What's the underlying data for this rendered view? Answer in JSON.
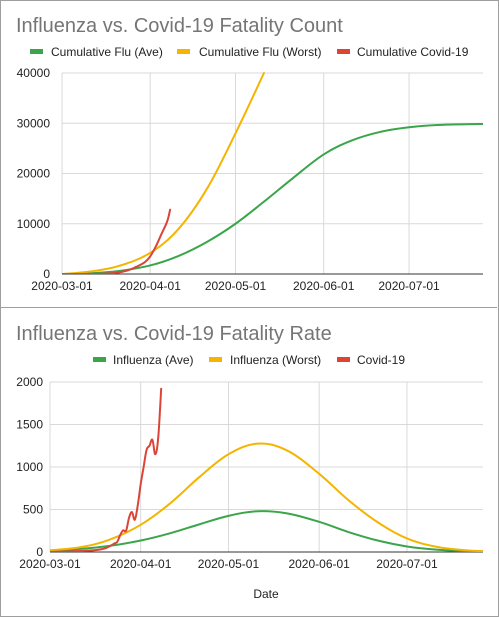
{
  "chart_data": [
    {
      "type": "line",
      "title": "Influenza vs. Covid-19 Fatality Count",
      "xlabel": "",
      "ylabel": "",
      "x_start": "2020-03-01",
      "x_end": "2020-07-27",
      "x_ticks": [
        "2020-03-01",
        "2020-04-01",
        "2020-05-01",
        "2020-06-01",
        "2020-07-01"
      ],
      "ylim": [
        0,
        40000
      ],
      "y_ticks": [
        0,
        10000,
        20000,
        30000,
        40000
      ],
      "grid": true,
      "legend_position": "top",
      "series": [
        {
          "name": "Cumulative Flu (Ave)",
          "color": "#3aa54a",
          "points": [
            [
              "2020-03-01",
              0
            ],
            [
              "2020-03-11",
              150
            ],
            [
              "2020-03-21",
              600
            ],
            [
              "2020-04-01",
              1700
            ],
            [
              "2020-04-11",
              3600
            ],
            [
              "2020-04-21",
              6400
            ],
            [
              "2020-05-01",
              10000
            ],
            [
              "2020-05-11",
              14400
            ],
            [
              "2020-05-21",
              19000
            ],
            [
              "2020-06-01",
              23800
            ],
            [
              "2020-06-11",
              26600
            ],
            [
              "2020-06-21",
              28300
            ],
            [
              "2020-07-01",
              29200
            ],
            [
              "2020-07-11",
              29650
            ],
            [
              "2020-07-21",
              29800
            ],
            [
              "2020-07-27",
              29850
            ]
          ]
        },
        {
          "name": "Cumulative Flu (Worst)",
          "color": "#f4b400",
          "points": [
            [
              "2020-03-01",
              0
            ],
            [
              "2020-03-11",
              500
            ],
            [
              "2020-03-21",
              1600
            ],
            [
              "2020-04-01",
              4200
            ],
            [
              "2020-04-11",
              9000
            ],
            [
              "2020-04-21",
              17000
            ],
            [
              "2020-05-01",
              28000
            ],
            [
              "2020-05-11",
              40000
            ]
          ]
        },
        {
          "name": "Cumulative Covid-19",
          "color": "#db4437",
          "points": [
            [
              "2020-03-01",
              0
            ],
            [
              "2020-03-10",
              20
            ],
            [
              "2020-03-15",
              60
            ],
            [
              "2020-03-20",
              250
            ],
            [
              "2020-03-24",
              700
            ],
            [
              "2020-03-27",
              1400
            ],
            [
              "2020-03-30",
              2300
            ],
            [
              "2020-04-01",
              3500
            ],
            [
              "2020-04-03",
              5500
            ],
            [
              "2020-04-05",
              8000
            ],
            [
              "2020-04-07",
              10500
            ],
            [
              "2020-04-08",
              12800
            ]
          ]
        }
      ]
    },
    {
      "type": "line",
      "title": "Influenza vs. Covid-19 Fatality Rate",
      "xlabel": "Date",
      "ylabel": "",
      "x_start": "2020-03-01",
      "x_end": "2020-07-27",
      "x_ticks": [
        "2020-03-01",
        "2020-04-01",
        "2020-05-01",
        "2020-06-01",
        "2020-07-01"
      ],
      "ylim": [
        0,
        2000
      ],
      "y_ticks": [
        0,
        500,
        1000,
        1500,
        2000
      ],
      "grid": true,
      "legend_position": "top",
      "series": [
        {
          "name": "Influenza (Ave)",
          "color": "#3aa54a",
          "points": [
            [
              "2020-03-01",
              15
            ],
            [
              "2020-03-11",
              35
            ],
            [
              "2020-03-21",
              70
            ],
            [
              "2020-04-01",
              135
            ],
            [
              "2020-04-11",
              220
            ],
            [
              "2020-04-21",
              325
            ],
            [
              "2020-05-01",
              425
            ],
            [
              "2020-05-11",
              480
            ],
            [
              "2020-05-21",
              455
            ],
            [
              "2020-06-01",
              355
            ],
            [
              "2020-06-11",
              235
            ],
            [
              "2020-06-21",
              135
            ],
            [
              "2020-07-01",
              65
            ],
            [
              "2020-07-11",
              28
            ],
            [
              "2020-07-21",
              10
            ],
            [
              "2020-07-27",
              6
            ]
          ]
        },
        {
          "name": "Influenza (Worst)",
          "color": "#f4b400",
          "points": [
            [
              "2020-03-01",
              20
            ],
            [
              "2020-03-11",
              55
            ],
            [
              "2020-03-21",
              140
            ],
            [
              "2020-04-01",
              320
            ],
            [
              "2020-04-11",
              570
            ],
            [
              "2020-04-21",
              880
            ],
            [
              "2020-05-01",
              1150
            ],
            [
              "2020-05-11",
              1275
            ],
            [
              "2020-05-21",
              1195
            ],
            [
              "2020-06-01",
              920
            ],
            [
              "2020-06-11",
              610
            ],
            [
              "2020-06-21",
              350
            ],
            [
              "2020-07-01",
              160
            ],
            [
              "2020-07-11",
              62
            ],
            [
              "2020-07-21",
              20
            ],
            [
              "2020-07-27",
              10
            ]
          ]
        },
        {
          "name": "Covid-19",
          "color": "#db4437",
          "points": [
            [
              "2020-03-01",
              0
            ],
            [
              "2020-03-10",
              10
            ],
            [
              "2020-03-16",
              20
            ],
            [
              "2020-03-20",
              45
            ],
            [
              "2020-03-23",
              100
            ],
            [
              "2020-03-24",
              120
            ],
            [
              "2020-03-25",
              200
            ],
            [
              "2020-03-26",
              255
            ],
            [
              "2020-03-27",
              250
            ],
            [
              "2020-03-28",
              400
            ],
            [
              "2020-03-29",
              470
            ],
            [
              "2020-03-30",
              380
            ],
            [
              "2020-03-31",
              550
            ],
            [
              "2020-04-01",
              800
            ],
            [
              "2020-04-02",
              1000
            ],
            [
              "2020-04-03",
              1200
            ],
            [
              "2020-04-04",
              1250
            ],
            [
              "2020-04-05",
              1320
            ],
            [
              "2020-04-06",
              1150
            ],
            [
              "2020-04-07",
              1350
            ],
            [
              "2020-04-08",
              1920
            ]
          ]
        }
      ]
    }
  ]
}
